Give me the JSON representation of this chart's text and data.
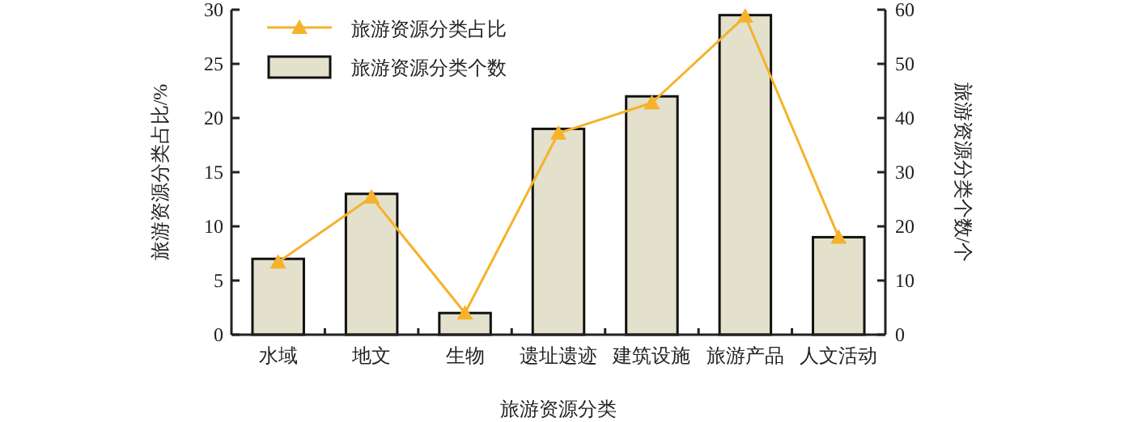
{
  "chart_data": {
    "type": "bar",
    "xlabel": "旅游资源分类",
    "ylabel": "旅游资源分类占比/%",
    "y2label": "旅游资源分类个数/个",
    "categories": [
      "水域",
      "地文",
      "生物",
      "遗址遗迹",
      "建筑设施",
      "旅游产品",
      "人文活动"
    ],
    "series": [
      {
        "name": "旅游资源分类占比",
        "type": "line",
        "color": "#f5b22a",
        "marker": "triangle",
        "axis": "y",
        "values": [
          6.7,
          12.7,
          2.0,
          18.6,
          21.4,
          29.4,
          9.0
        ]
      },
      {
        "name": "旅游资源分类个数",
        "color": "#e3e0cc",
        "axis": "y2",
        "values": [
          14,
          26,
          4,
          38,
          44,
          59,
          18
        ]
      }
    ],
    "ylim": [
      0,
      30
    ],
    "yticks": [
      0,
      5,
      10,
      15,
      20,
      25,
      30
    ],
    "y2lim": [
      0,
      60
    ],
    "y2ticks": [
      0,
      10,
      20,
      30,
      40,
      50,
      60
    ],
    "legend": "top left"
  }
}
